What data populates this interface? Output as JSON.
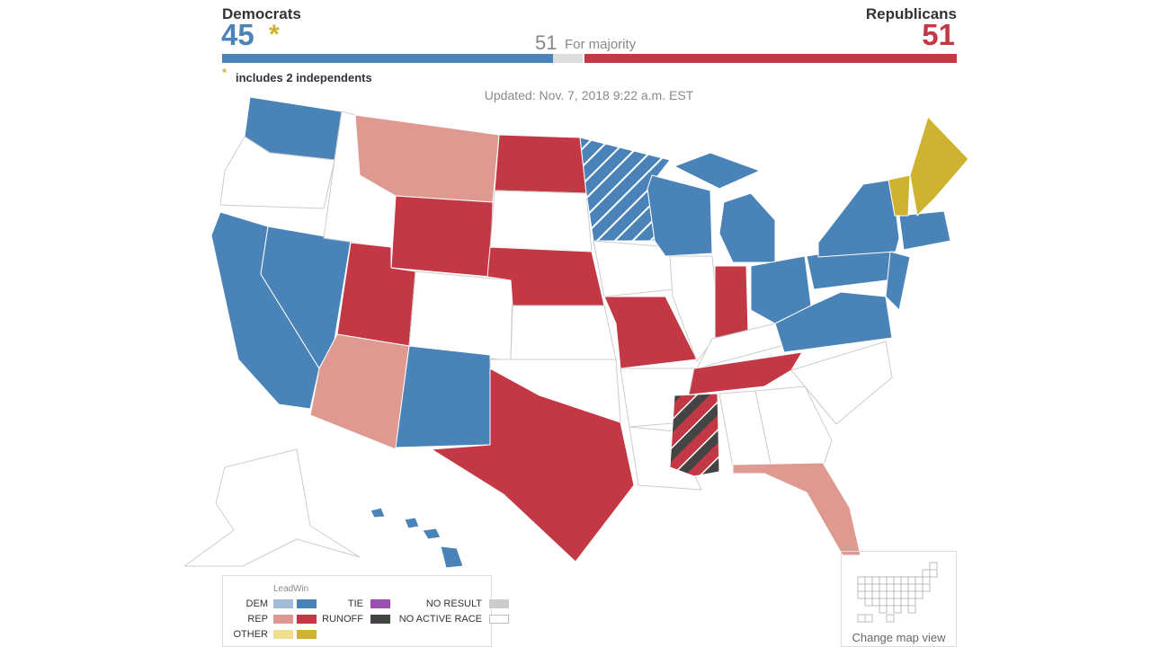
{
  "header": {
    "dem_label": "Democrats",
    "dem_seats": 45,
    "dem_asterisk": "*",
    "rep_label": "Republicans",
    "rep_seats": 51,
    "majority": 51,
    "majority_label": "For majority"
  },
  "note": {
    "mark": "*",
    "text": "includes 2 independents"
  },
  "updated": "Updated: Nov. 7, 2018 9:22 a.m. EST",
  "legend": {
    "lead": "Lead",
    "win": "Win",
    "parties": [
      {
        "label": "DEM",
        "lead_color": "#a3bcd6",
        "win_color": "#4a83b8"
      },
      {
        "label": "REP",
        "lead_color": "#de9a90",
        "win_color": "#c33845"
      },
      {
        "label": "OTHER",
        "lead_color": "#f0dd8e",
        "win_color": "#cfb22f"
      }
    ],
    "others": [
      {
        "label": "TIE",
        "color": "#9b4fb0"
      },
      {
        "label": "RUNOFF",
        "color": "#444444"
      },
      {
        "label": "NO RESULT",
        "color": "#cccccc"
      },
      {
        "label": "NO ACTIVE RACE",
        "color": "#ffffff"
      }
    ]
  },
  "map_view": {
    "button": "Change map view"
  }
}
